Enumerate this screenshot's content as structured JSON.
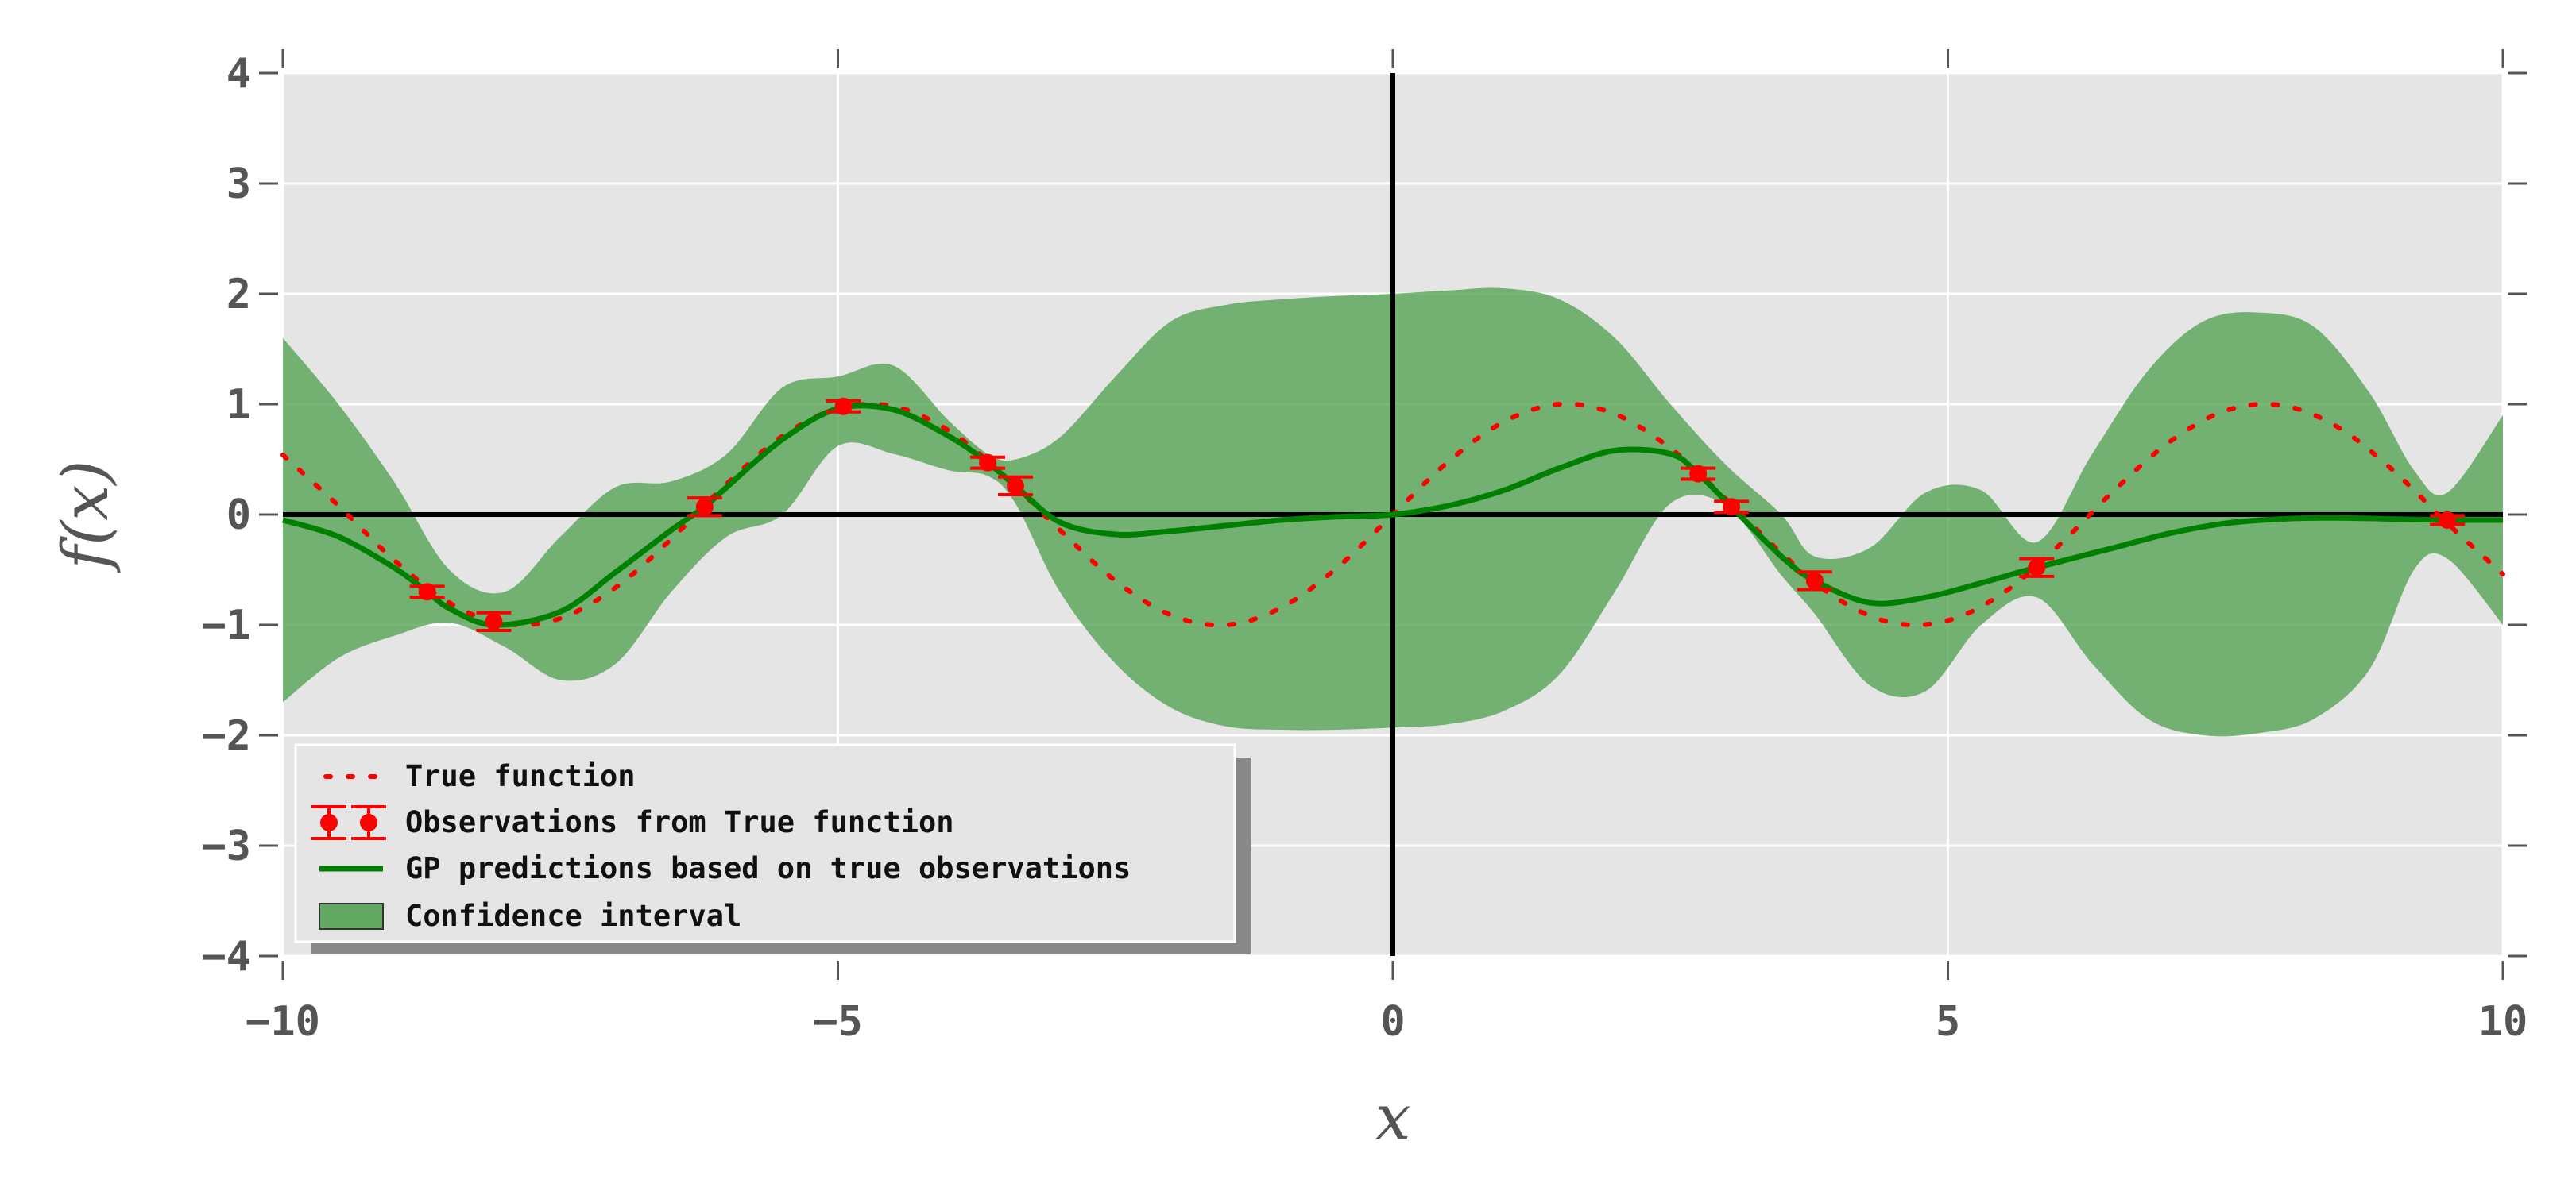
{
  "chart_data": {
    "type": "line",
    "title": "",
    "xlabel": "x",
    "ylabel": "f(x)",
    "xlim": [
      -10,
      10
    ],
    "ylim": [
      -4,
      4
    ],
    "xticks": [
      -10,
      -5,
      0,
      5,
      10
    ],
    "yticks": [
      -4,
      -3,
      -2,
      -1,
      0,
      1,
      2,
      3,
      4
    ],
    "xtick_labels": [
      "−10",
      "−5",
      "0",
      "5",
      "10"
    ],
    "ytick_labels": [
      "−4",
      "−3",
      "−2",
      "−1",
      "0",
      "1",
      "2",
      "3",
      "4"
    ],
    "grid": true,
    "background": "#e5e5e5",
    "legend_position": "lower-left",
    "true_function": {
      "name": "True function",
      "color": "#ff0000",
      "style": "dotted",
      "x": [
        -10,
        -9.5,
        -9,
        -8.5,
        -8,
        -7.5,
        -7,
        -6.5,
        -6,
        -5.5,
        -5,
        -4.5,
        -4,
        -3.5,
        -3,
        -2.5,
        -2,
        -1.5,
        -1,
        -0.5,
        0,
        0.5,
        1,
        1.5,
        2,
        2.5,
        3,
        3.5,
        4,
        4.5,
        5,
        5.5,
        6,
        6.5,
        7,
        7.5,
        8,
        8.5,
        9,
        9.5,
        10
      ],
      "y": [
        0.54,
        0.08,
        -0.41,
        -0.8,
        -0.99,
        -0.94,
        -0.66,
        -0.22,
        0.28,
        0.71,
        0.96,
        0.98,
        0.76,
        0.35,
        -0.14,
        -0.6,
        -0.91,
        -1.0,
        -0.84,
        -0.48,
        0.0,
        0.48,
        0.84,
        1.0,
        0.91,
        0.6,
        0.14,
        -0.35,
        -0.76,
        -0.98,
        -0.96,
        -0.71,
        -0.28,
        0.22,
        0.66,
        0.94,
        0.99,
        0.8,
        0.41,
        -0.08,
        -0.54
      ]
    },
    "observations": {
      "name": "Observations from True function",
      "color": "#ff0000",
      "x": [
        -8.7,
        -8.1,
        -6.2,
        -4.95,
        -3.65,
        -3.4,
        2.75,
        3.05,
        3.8,
        5.8,
        9.5
      ],
      "y": [
        -0.7,
        -0.97,
        0.07,
        0.98,
        0.47,
        0.26,
        0.37,
        0.07,
        -0.6,
        -0.48,
        -0.05
      ],
      "error": [
        0.05,
        0.08,
        0.08,
        0.05,
        0.05,
        0.08,
        0.05,
        0.05,
        0.08,
        0.08,
        0.04
      ]
    },
    "gp_prediction": {
      "name": "GP predictions based on true observations",
      "color": "#008000",
      "x": [
        -10,
        -9.5,
        -9,
        -8.7,
        -8.5,
        -8.1,
        -7.5,
        -7,
        -6.5,
        -6.2,
        -6,
        -5.5,
        -5,
        -4.5,
        -4,
        -3.65,
        -3.4,
        -3,
        -2.5,
        -2,
        -1.5,
        -1,
        -0.5,
        0,
        0.5,
        1,
        1.5,
        2,
        2.5,
        2.75,
        3.05,
        3.5,
        3.8,
        4.3,
        4.8,
        5.3,
        5.8,
        6.5,
        7,
        7.5,
        8,
        8.5,
        9,
        9.5,
        10
      ],
      "y": [
        -0.05,
        -0.2,
        -0.48,
        -0.7,
        -0.85,
        -1.0,
        -0.88,
        -0.52,
        -0.14,
        0.07,
        0.25,
        0.68,
        0.96,
        0.95,
        0.71,
        0.47,
        0.26,
        -0.07,
        -0.18,
        -0.15,
        -0.1,
        -0.05,
        -0.02,
        0.0,
        0.08,
        0.22,
        0.42,
        0.58,
        0.55,
        0.37,
        0.07,
        -0.38,
        -0.6,
        -0.8,
        -0.75,
        -0.62,
        -0.48,
        -0.3,
        -0.17,
        -0.08,
        -0.04,
        -0.03,
        -0.04,
        -0.05,
        -0.05
      ]
    },
    "confidence_interval": {
      "name": "Confidence interval",
      "color": "#4c9f4c",
      "x": [
        -10,
        -9.5,
        -9,
        -8.5,
        -8,
        -7.5,
        -7,
        -6.5,
        -6,
        -5.5,
        -5,
        -4.5,
        -4,
        -3.65,
        -3.4,
        -3,
        -2.5,
        -2,
        -1.5,
        -1,
        -0.5,
        0,
        0.5,
        1,
        1.5,
        2,
        2.5,
        3,
        3.5,
        3.8,
        4.3,
        4.8,
        5.3,
        5.8,
        6.3,
        6.8,
        7.3,
        7.8,
        8.3,
        8.8,
        9.2,
        9.5,
        10
      ],
      "upper": [
        1.6,
        1.0,
        0.3,
        -0.5,
        -0.7,
        -0.2,
        0.25,
        0.3,
        0.55,
        1.15,
        1.25,
        1.35,
        0.85,
        0.55,
        0.5,
        0.7,
        1.25,
        1.75,
        1.9,
        1.95,
        1.98,
        2.0,
        2.03,
        2.05,
        1.95,
        1.6,
        1.0,
        0.45,
        0.0,
        -0.38,
        -0.3,
        0.2,
        0.22,
        -0.25,
        0.55,
        1.3,
        1.75,
        1.83,
        1.7,
        1.1,
        0.4,
        0.2,
        0.9
      ],
      "lower": [
        -1.7,
        -1.3,
        -1.1,
        -0.98,
        -1.2,
        -1.5,
        -1.35,
        -0.7,
        -0.2,
        0.0,
        0.62,
        0.55,
        0.4,
        0.35,
        0.1,
        -0.7,
        -1.35,
        -1.75,
        -1.92,
        -1.95,
        -1.95,
        -1.93,
        -1.9,
        -1.78,
        -1.45,
        -0.7,
        0.1,
        0.08,
        -0.55,
        -0.9,
        -1.55,
        -1.6,
        -1.0,
        -0.75,
        -1.35,
        -1.85,
        -2.0,
        -1.98,
        -1.85,
        -1.4,
        -0.5,
        -0.4,
        -1.0
      ]
    },
    "reference_lines": {
      "hline_y": 0,
      "vline_x": 0,
      "color": "#000000"
    },
    "legend": [
      {
        "label": "True function",
        "marker": "dotted-line"
      },
      {
        "label": "Observations from True function",
        "marker": "errorbar"
      },
      {
        "label": "GP predictions based on true observations",
        "marker": "solid-line"
      },
      {
        "label": "Confidence interval",
        "marker": "patch"
      }
    ]
  }
}
